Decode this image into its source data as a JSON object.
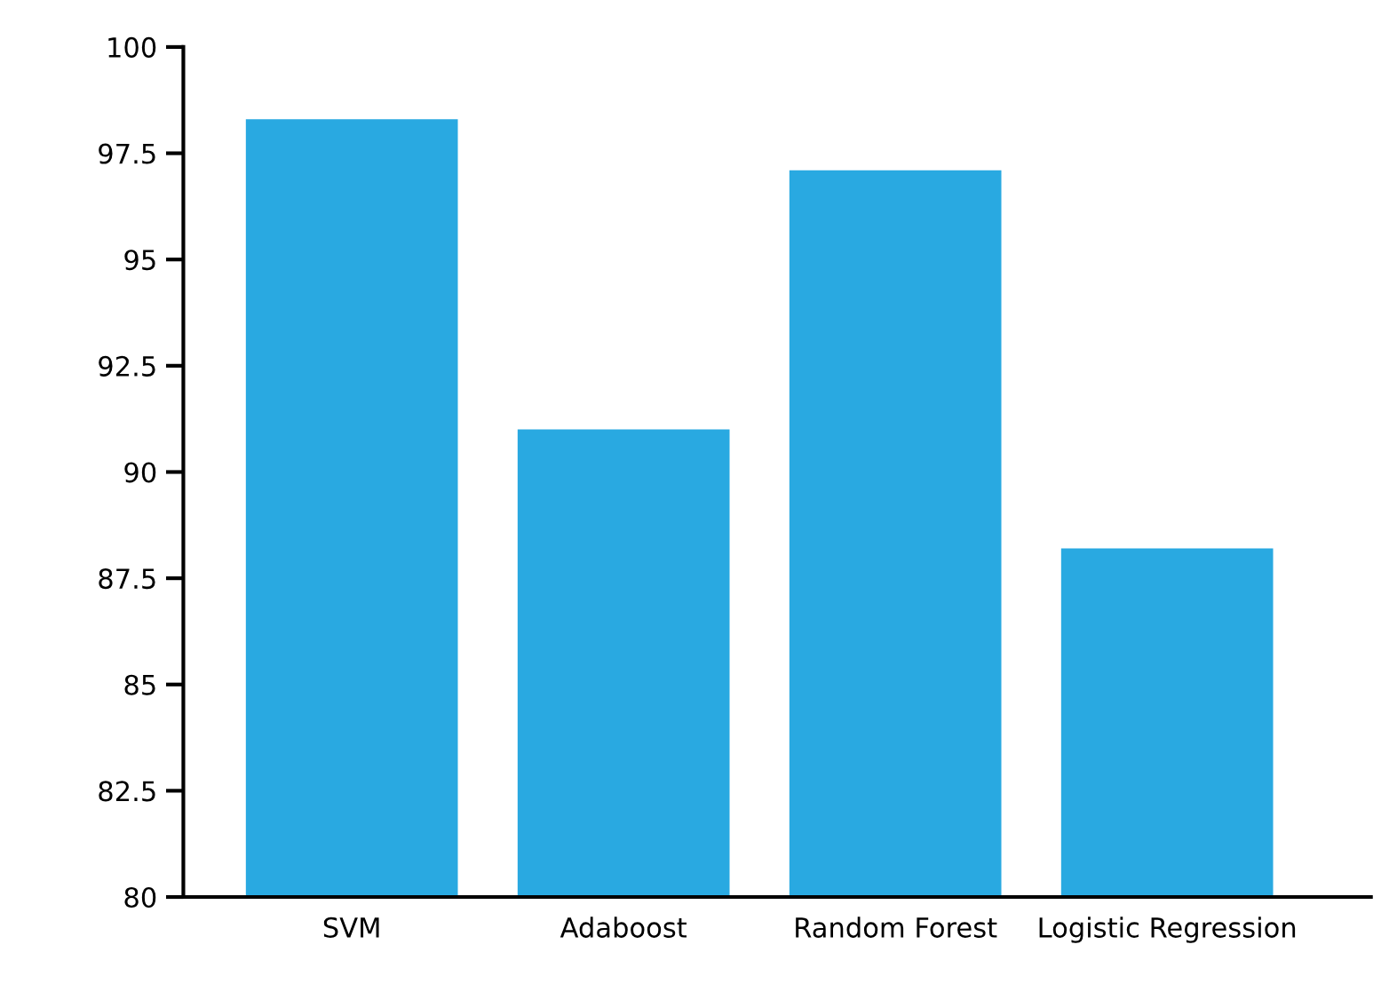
{
  "chart_data": {
    "type": "bar",
    "categories": [
      "SVM",
      "Adaboost",
      "Random Forest",
      "Logistic Regression"
    ],
    "values": [
      98.3,
      91.0,
      97.1,
      88.2
    ],
    "color": "#29a9e1",
    "ylim": [
      80,
      100
    ],
    "yticks": [
      80,
      {
        "value": 82.5,
        "label": "82.5"
      },
      85,
      {
        "value": 87.5,
        "label": "87.5"
      },
      90,
      {
        "value": 92.5,
        "label": "92.5"
      },
      95,
      {
        "value": 97.5,
        "label": "97.5"
      },
      100
    ],
    "grid": false
  }
}
